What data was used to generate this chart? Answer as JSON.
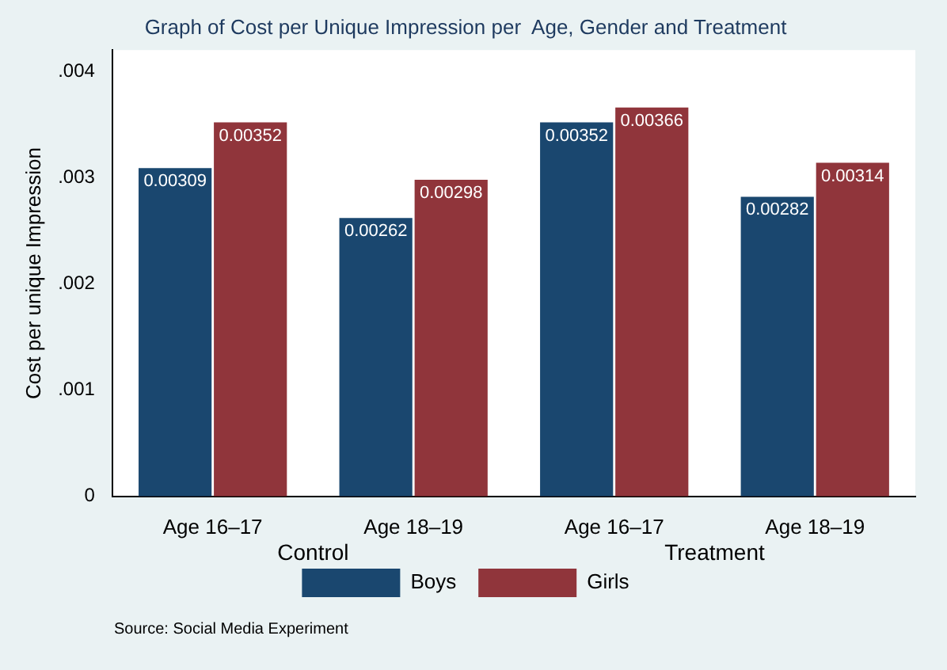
{
  "chart_data": {
    "type": "bar",
    "title": "Graph of Cost per Unique Impression per  Age, Gender and Treatment",
    "ylabel": "Cost per unique Impression",
    "categories": [
      "Age 16–17",
      "Age 18–19",
      "Age 16–17",
      "Age 18–19"
    ],
    "series": [
      {
        "name": "Boys",
        "color": "#1a476f",
        "values": [
          0.00309,
          0.00262,
          0.00352,
          0.00282
        ]
      },
      {
        "name": "Girls",
        "color": "#90353b",
        "values": [
          0.00352,
          0.00298,
          0.00366,
          0.00314
        ]
      }
    ],
    "ylim": [
      0,
      0.0042
    ],
    "yticks": [
      0,
      {
        "value": 0.001,
        "label": ".001"
      },
      {
        "value": 0.002,
        "label": ".002"
      },
      {
        "value": 0.003,
        "label": ".003"
      },
      {
        "value": 0.004,
        "label": ".004"
      }
    ],
    "data_labels": true,
    "grid": false,
    "legend": "bottom",
    "annotations": [
      "Control",
      "Treatment",
      "Source: Social Media Experiment"
    ]
  }
}
